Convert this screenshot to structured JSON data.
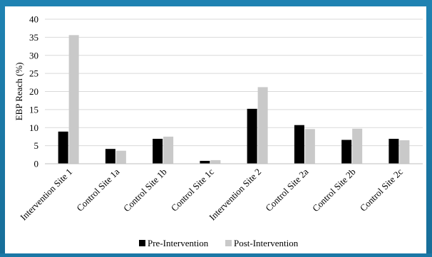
{
  "colors": {
    "frame": "#1b78a6",
    "panel": "#ffffff",
    "grid": "#d9d9d9",
    "axis": "#bfbfbf",
    "pre": "#000000",
    "post": "#c9c9c9"
  },
  "chart_data": {
    "type": "bar",
    "title": "",
    "xlabel": "",
    "ylabel": "EBP Reach (%)",
    "ylim": [
      0,
      40
    ],
    "yticks": [
      0,
      5,
      10,
      15,
      20,
      25,
      30,
      35,
      40
    ],
    "grid": true,
    "legend_position": "bottom",
    "categories": [
      "Intervention Site 1",
      "Control Site 1a",
      "Control Site 1b",
      "Control Site 1c",
      "Intervention Site 2",
      "Control Site 2a",
      "Control Site 2b",
      "Control Site 2c"
    ],
    "series": [
      {
        "name": "Pre-Intervention",
        "color": "#000000",
        "values": [
          8.9,
          4.1,
          6.9,
          0.8,
          15.2,
          10.7,
          6.6,
          6.9
        ]
      },
      {
        "name": "Post-Intervention",
        "color": "#c9c9c9",
        "values": [
          35.6,
          3.6,
          7.5,
          1.0,
          21.2,
          9.6,
          9.7,
          6.5
        ]
      }
    ]
  }
}
